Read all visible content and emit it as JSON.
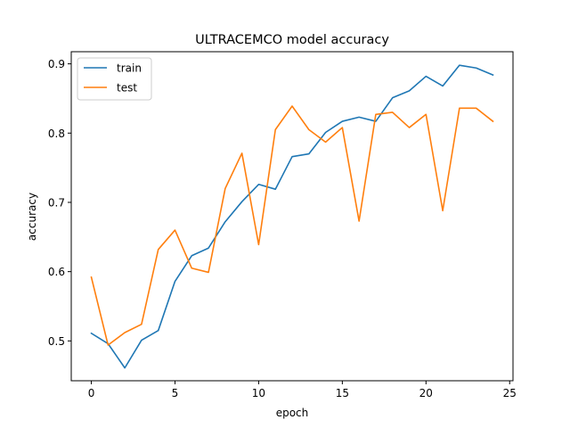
{
  "chart_data": {
    "type": "line",
    "title": "ULTRACEMCO model accuracy",
    "xlabel": "epoch",
    "ylabel": "accuracy",
    "xlim": [
      -1.2,
      25.2
    ],
    "ylim": [
      0.4425,
      0.9175
    ],
    "xticks": [
      0,
      5,
      10,
      15,
      20,
      25
    ],
    "yticks": [
      0.5,
      0.6,
      0.7,
      0.8,
      0.9
    ],
    "xtick_labels": [
      "0",
      "5",
      "10",
      "15",
      "20",
      "25"
    ],
    "ytick_labels": [
      "0.5",
      "0.6",
      "0.7",
      "0.8",
      "0.9"
    ],
    "grid": false,
    "legend_position": "top-left",
    "x": [
      0,
      1,
      2,
      3,
      4,
      5,
      6,
      7,
      8,
      9,
      10,
      11,
      12,
      13,
      14,
      15,
      16,
      17,
      18,
      19,
      20,
      21,
      22,
      23,
      24
    ],
    "series": [
      {
        "name": "train",
        "color": "#1f77b4",
        "values": [
          0.511,
          0.496,
          0.461,
          0.501,
          0.515,
          0.586,
          0.623,
          0.634,
          0.672,
          0.701,
          0.726,
          0.719,
          0.766,
          0.77,
          0.801,
          0.817,
          0.823,
          0.817,
          0.851,
          0.861,
          0.882,
          0.868,
          0.898,
          0.894,
          0.884
        ]
      },
      {
        "name": "test",
        "color": "#ff7f0e",
        "values": [
          0.592,
          0.494,
          0.512,
          0.524,
          0.632,
          0.66,
          0.605,
          0.599,
          0.72,
          0.771,
          0.639,
          0.805,
          0.839,
          0.805,
          0.787,
          0.808,
          0.673,
          0.827,
          0.83,
          0.808,
          0.827,
          0.688,
          0.836,
          0.836,
          0.817
        ]
      }
    ]
  }
}
